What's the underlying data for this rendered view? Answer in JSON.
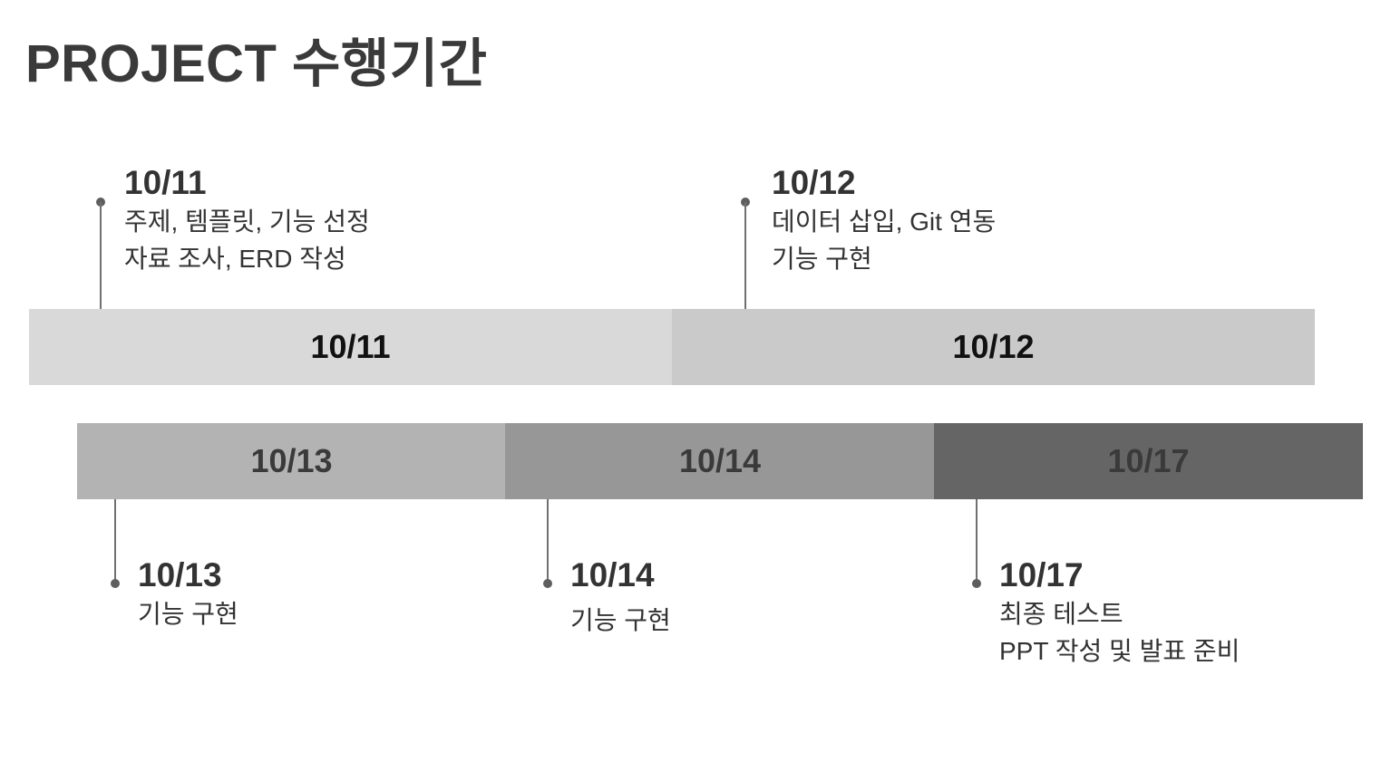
{
  "title": "PROJECT 수행기간",
  "colors": {
    "bar_1011": "#d9d9d9",
    "bar_1012": "#cacaca",
    "bar_1013": "#b3b3b3",
    "bar_1014": "#979797",
    "bar_1017": "#656565",
    "connector": "#707070"
  },
  "timeline": {
    "top_row": [
      {
        "label": "10/11"
      },
      {
        "label": "10/12"
      }
    ],
    "bottom_row": [
      {
        "label": "10/13"
      },
      {
        "label": "10/14"
      },
      {
        "label": "10/17"
      }
    ]
  },
  "callouts": [
    {
      "date": "10/11",
      "lines": [
        "주제, 템플릿, 기능 선정",
        "자료 조사, ERD 작성"
      ]
    },
    {
      "date": "10/12",
      "lines": [
        "데이터 삽입, Git 연동",
        "기능 구현"
      ]
    },
    {
      "date": "10/13",
      "lines": [
        "기능 구현"
      ]
    },
    {
      "date": "10/14",
      "lines": [
        "기능 구현"
      ]
    },
    {
      "date": "10/17",
      "lines": [
        "최종 테스트",
        "PPT 작성 및 발표 준비"
      ]
    }
  ]
}
